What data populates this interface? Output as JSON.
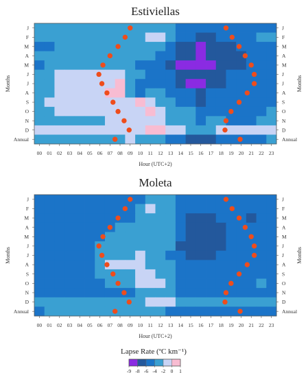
{
  "figure": {
    "legend": {
      "title": "Lapse Rate (ºC km⁻¹)",
      "tick_labels": [
        "-9",
        "-8",
        "-6",
        "-4",
        "-2",
        "0",
        "1"
      ]
    }
  },
  "chart_data": [
    {
      "type": "heatmap",
      "title": "Estiviellas",
      "xlabel": "Hour (UTC+2)",
      "ylabel": "Months",
      "x_ticks": [
        "00",
        "01",
        "02",
        "03",
        "04",
        "05",
        "06",
        "07",
        "08",
        "09",
        "10",
        "11",
        "12",
        "13",
        "14",
        "15",
        "16",
        "17",
        "18",
        "19",
        "20",
        "21",
        "22",
        "23"
      ],
      "y_ticks": [
        "J",
        "F",
        "M",
        "A",
        "M",
        "J",
        "J",
        "A",
        "S",
        "O",
        "N",
        "D",
        "Annual"
      ],
      "legend_position": "bottom",
      "color_classes": [
        {
          "range": "-9 to -8",
          "color": "#8a2be2"
        },
        {
          "range": "-8 to -6",
          "color": "#23589c"
        },
        {
          "range": "-6 to -4",
          "color": "#1b74c8"
        },
        {
          "range": "-4 to -2",
          "color": "#3aa0d2"
        },
        {
          "range": "-2 to 0",
          "color": "#c8d4f5"
        },
        {
          "range": "0 to 1",
          "color": "#f8bcd2"
        }
      ],
      "z": [
        [
          -3.5,
          -3.5,
          -3.5,
          -3.5,
          -3.5,
          -3.5,
          -3.5,
          -3.5,
          -3.5,
          -3.5,
          -3.5,
          -3.5,
          -3.5,
          -3.5,
          -5,
          -5,
          -5,
          -5,
          -5,
          -5,
          -5,
          -5,
          -5,
          -5
        ],
        [
          -3.5,
          -3.5,
          -3.5,
          -3.5,
          -3.5,
          -3.5,
          -3.5,
          -3.5,
          -3.5,
          -3.5,
          -3.5,
          -1,
          -1,
          -3.5,
          -5,
          -5,
          -7,
          -7,
          -5,
          -5,
          -5,
          -5,
          -3.5,
          -3.5
        ],
        [
          -5,
          -5,
          -3.5,
          -3.5,
          -3.5,
          -3.5,
          -3.5,
          -3.5,
          -3.5,
          -3.5,
          -3.5,
          -3.5,
          -3.5,
          -5,
          -7,
          -7,
          -8.5,
          -7,
          -7,
          -7,
          -5,
          -5,
          -5,
          -5
        ],
        [
          -3.5,
          -3.5,
          -3.5,
          -3.5,
          -3.5,
          -3.5,
          -3.5,
          -3.5,
          -3.5,
          -3.5,
          -3.5,
          -3.5,
          -5,
          -5,
          -7,
          -7,
          -8.5,
          -7,
          -7,
          -7,
          -7,
          -5,
          -5,
          -5
        ],
        [
          -5,
          -3.5,
          -3.5,
          -3.5,
          -3.5,
          -3.5,
          -3.5,
          -3.5,
          -3.5,
          -3.5,
          -5,
          -5,
          -5,
          -7,
          -8.5,
          -8.5,
          -8.5,
          -8.5,
          -7,
          -7,
          -7,
          -5,
          -5,
          -5
        ],
        [
          -3.5,
          -3.5,
          -1,
          -1,
          -1,
          -1,
          -1,
          -1,
          -1,
          -3.5,
          -3.5,
          -5,
          -5,
          -5,
          -7,
          -7,
          -7,
          -7,
          -7,
          -5,
          -5,
          -5,
          -5,
          -5
        ],
        [
          -3.5,
          -3.5,
          -1,
          -1,
          -1,
          -1,
          -1,
          -1,
          0.5,
          -3.5,
          -5,
          -5,
          -5,
          -5,
          -7,
          -8.5,
          -8.5,
          -7,
          -7,
          -5,
          -5,
          -5,
          -5,
          -5
        ],
        [
          -3.5,
          -3.5,
          -1,
          -1,
          -1,
          -1,
          -1,
          0.5,
          0.5,
          -3.5,
          -5,
          -3.5,
          -3.5,
          -5,
          -5,
          -5,
          -7,
          -5,
          -5,
          -5,
          -5,
          -5,
          -5,
          -5
        ],
        [
          -3.5,
          -1,
          -1,
          -1,
          -1,
          -1,
          -1,
          -1,
          -1,
          -1,
          0.5,
          -1,
          -3.5,
          -3.5,
          -5,
          -5,
          -7,
          -5,
          -5,
          -5,
          -5,
          -5,
          -5,
          -5
        ],
        [
          -3.5,
          -3.5,
          -1,
          -1,
          -1,
          -1,
          -1,
          -1,
          -1,
          -1,
          -1,
          0.5,
          -1,
          -3.5,
          -3.5,
          -3.5,
          -5,
          -5,
          -5,
          -5,
          -5,
          -5,
          -5,
          -3.5
        ],
        [
          -3.5,
          -3.5,
          -3.5,
          -3.5,
          -3.5,
          -3.5,
          -3.5,
          -1,
          -1,
          -1,
          -1,
          -1,
          -1,
          -3.5,
          -3.5,
          -3.5,
          -5,
          -3.5,
          -3.5,
          -5,
          -5,
          -5,
          -3.5,
          -3.5
        ],
        [
          -1,
          -1,
          -1,
          -1,
          -1,
          -1,
          -1,
          -1,
          -1,
          -1,
          -1,
          0.5,
          0.5,
          -1,
          -1,
          -3.5,
          -3.5,
          -3.5,
          -1,
          -1,
          -1,
          -1,
          -1,
          -1
        ],
        [
          -3.5,
          -3.5,
          -3.5,
          -3.5,
          -3.5,
          -3.5,
          -3.5,
          -3.5,
          -3.5,
          -1,
          -3.5,
          -3.5,
          -3.5,
          -5,
          -5,
          -7,
          -7,
          -7,
          -5,
          -5,
          -5,
          -5,
          -5,
          -3.5
        ]
      ],
      "sunrise_hour": [
        9.0,
        8.5,
        7.8,
        7.0,
        6.3,
        5.9,
        6.2,
        6.7,
        7.3,
        7.8,
        8.4,
        8.9,
        7.5
      ],
      "sunset_hour": [
        18.5,
        19.1,
        19.8,
        20.4,
        21.0,
        21.3,
        21.3,
        20.6,
        19.8,
        19.0,
        18.5,
        18.4,
        19.9
      ]
    },
    {
      "type": "heatmap",
      "title": "Moleta",
      "xlabel": "Hour (UTC+2)",
      "ylabel": "Months",
      "x_ticks": [
        "00",
        "01",
        "02",
        "03",
        "04",
        "05",
        "06",
        "07",
        "08",
        "09",
        "10",
        "11",
        "12",
        "13",
        "14",
        "15",
        "16",
        "17",
        "18",
        "19",
        "20",
        "21",
        "22",
        "23"
      ],
      "y_ticks": [
        "J",
        "F",
        "M",
        "A",
        "M",
        "J",
        "J",
        "A",
        "S",
        "O",
        "N",
        "D",
        "Annual"
      ],
      "color_classes": [
        {
          "range": "-9 to -8",
          "color": "#8a2be2"
        },
        {
          "range": "-8 to -6",
          "color": "#23589c"
        },
        {
          "range": "-6 to -4",
          "color": "#1b74c8"
        },
        {
          "range": "-4 to -2",
          "color": "#3aa0d2"
        },
        {
          "range": "-2 to 0",
          "color": "#c8d4f5"
        },
        {
          "range": "0 to 1",
          "color": "#f8bcd2"
        }
      ],
      "z": [
        [
          -5,
          -5,
          -5,
          -5,
          -5,
          -5,
          -5,
          -5,
          -5,
          -5,
          -5,
          -3.5,
          -3.5,
          -3.5,
          -5,
          -5,
          -5,
          -5,
          -5,
          -5,
          -5,
          -5,
          -5,
          -5
        ],
        [
          -5,
          -5,
          -5,
          -5,
          -5,
          -5,
          -5,
          -5,
          -5,
          -5,
          -3.5,
          -1,
          -3.5,
          -3.5,
          -5,
          -5,
          -5,
          -5,
          -5,
          -5,
          -5,
          -5,
          -5,
          -5
        ],
        [
          -5,
          -5,
          -5,
          -5,
          -5,
          -5,
          -5,
          -5,
          -5,
          -5,
          -3.5,
          -3.5,
          -3.5,
          -3.5,
          -5,
          -7,
          -7,
          -7,
          -5,
          -5,
          -5,
          -7,
          -5,
          -5
        ],
        [
          -5,
          -5,
          -5,
          -5,
          -5,
          -5,
          -5,
          -5,
          -3.5,
          -3.5,
          -3.5,
          -3.5,
          -3.5,
          -3.5,
          -5,
          -7,
          -7,
          -7,
          -7,
          -5,
          -5,
          -5,
          -5,
          -5
        ],
        [
          -5,
          -5,
          -5,
          -5,
          -5,
          -5,
          -5,
          -3.5,
          -3.5,
          -3.5,
          -3.5,
          -3.5,
          -3.5,
          -3.5,
          -5,
          -7,
          -7,
          -7,
          -7,
          -5,
          -5,
          -5,
          -5,
          -5
        ],
        [
          -5,
          -5,
          -5,
          -5,
          -5,
          -5,
          -3.5,
          -3.5,
          -3.5,
          -3.5,
          -3.5,
          -3.5,
          -3.5,
          -3.5,
          -7,
          -7,
          -7,
          -7,
          -7,
          -5,
          -5,
          -5,
          -5,
          -5
        ],
        [
          -5,
          -5,
          -5,
          -5,
          -5,
          -5,
          -3.5,
          -3.5,
          -3.5,
          -3.5,
          -1,
          -3.5,
          -3.5,
          -5,
          -5,
          -7,
          -7,
          -7,
          -5,
          -5,
          -5,
          -5,
          -5,
          -5
        ],
        [
          -5,
          -5,
          -5,
          -5,
          -5,
          -5,
          -3.5,
          -1,
          -1,
          -1,
          -1,
          -3.5,
          -3.5,
          -3.5,
          -5,
          -5,
          -5,
          -5,
          -5,
          -5,
          -5,
          -5,
          -5,
          -5
        ],
        [
          -5,
          -5,
          -5,
          -5,
          -5,
          -5,
          -3.5,
          -3.5,
          -3.5,
          -3.5,
          -1,
          -1,
          -3.5,
          -3.5,
          -5,
          -5,
          -5,
          -5,
          -5,
          -5,
          -5,
          -5,
          -5,
          -5
        ],
        [
          -5,
          -5,
          -5,
          -5,
          -5,
          -5,
          -5,
          -3.5,
          -3.5,
          -3.5,
          -1,
          -1,
          -1,
          -3.5,
          -5,
          -5,
          -5,
          -5,
          -5,
          -5,
          -5,
          -5,
          -3.5,
          -5
        ],
        [
          -5,
          -5,
          -5,
          -5,
          -5,
          -5,
          -5,
          -5,
          -5,
          -5,
          -3.5,
          -3.5,
          -3.5,
          -3.5,
          -5,
          -5,
          -5,
          -5,
          -5,
          -5,
          -5,
          -5,
          -5,
          -5
        ],
        [
          -3.5,
          -3.5,
          -3.5,
          -3.5,
          -3.5,
          -3.5,
          -3.5,
          -3.5,
          -3.5,
          -3.5,
          -3.5,
          -1,
          -1,
          -1,
          -3.5,
          -3.5,
          -3.5,
          -3.5,
          -3.5,
          -3.5,
          -3.5,
          -3.5,
          -3.5,
          -3.5
        ],
        [
          -5,
          -3.5,
          -3.5,
          -3.5,
          -3.5,
          -3.5,
          -3.5,
          -3.5,
          -3.5,
          -3.5,
          -3.5,
          -3.5,
          -3.5,
          -5,
          -5,
          -5,
          -5,
          -5,
          -5,
          -5,
          -5,
          -5,
          -5,
          -5
        ]
      ],
      "sunrise_hour": [
        9.0,
        8.5,
        7.8,
        7.0,
        6.3,
        5.9,
        6.2,
        6.7,
        7.3,
        7.8,
        8.4,
        8.9,
        7.5
      ],
      "sunset_hour": [
        18.5,
        19.1,
        19.8,
        20.4,
        21.0,
        21.3,
        21.3,
        20.6,
        19.8,
        19.0,
        18.5,
        18.4,
        19.9
      ]
    }
  ]
}
